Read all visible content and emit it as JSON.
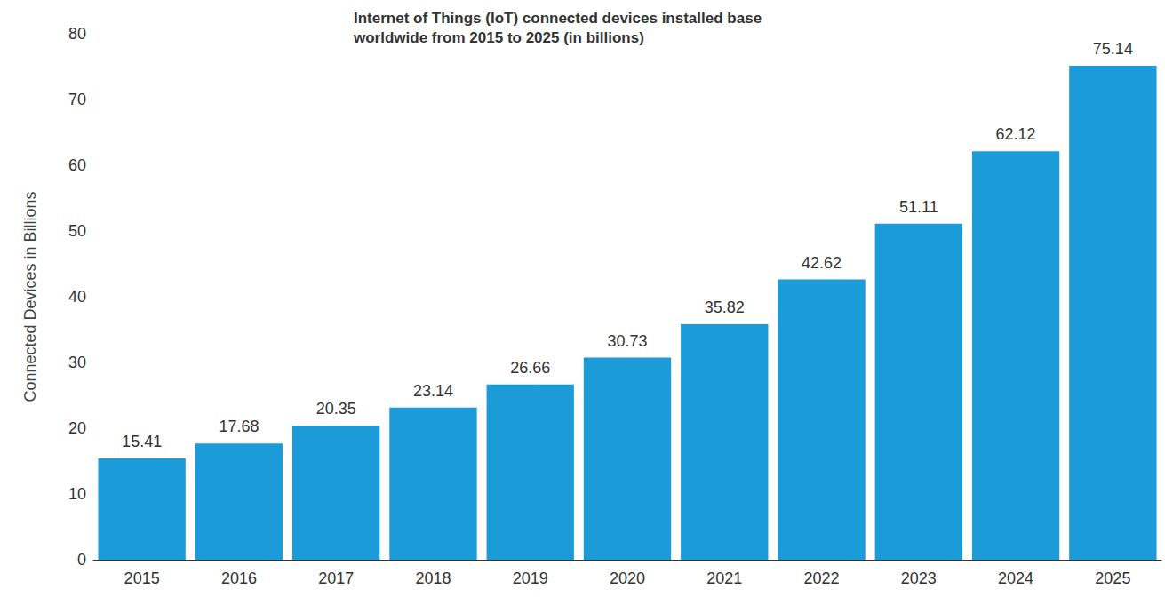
{
  "chart_data": {
    "type": "bar",
    "title": "Internet of Things (IoT) connected devices installed base worldwide from 2015 to 2025 (in billions)",
    "y_label": "Connected Devices in Billions",
    "categories": [
      "2015",
      "2016",
      "2017",
      "2018",
      "2019",
      "2020",
      "2021",
      "2022",
      "2023",
      "2024",
      "2025"
    ],
    "values": [
      15.41,
      17.68,
      20.35,
      23.14,
      26.66,
      30.73,
      35.82,
      42.62,
      51.11,
      62.12,
      75.14
    ],
    "color": "#1b9bd7",
    "ylim": [
      0,
      80
    ],
    "yticks": [
      0,
      10,
      20,
      30,
      40,
      50,
      60,
      70,
      80
    ],
    "grid": false,
    "data_labels": true
  }
}
